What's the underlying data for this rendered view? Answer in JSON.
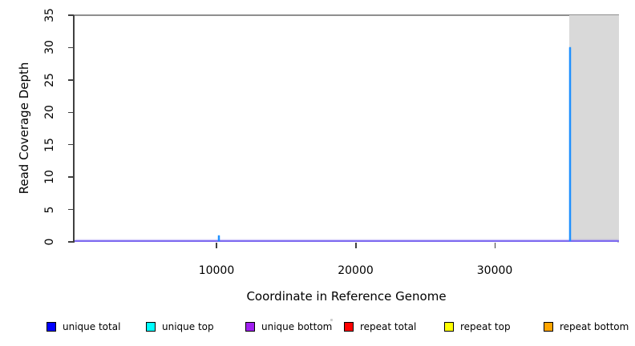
{
  "figure": {
    "background": "#ffffff",
    "border_top_color": "#8f8f8f",
    "border_right_color": "#c2c2c2",
    "axis_color": "#404040"
  },
  "chart_data": {
    "type": "line",
    "title": "",
    "xlabel": "Coordinate in Reference Genome",
    "ylabel": "Read Coverage Depth",
    "x_range": [
      -200,
      38930
    ],
    "y_range": [
      0,
      35
    ],
    "x_ticks": [
      10000,
      20000,
      30000
    ],
    "y_ticks": [
      0,
      5,
      10,
      15,
      20,
      25,
      30,
      35
    ],
    "grid": "off",
    "legend_position": "bottom",
    "highlight_region": {
      "x_start": 35350,
      "x_end": 38930,
      "color": "#d9d9d9"
    },
    "baseline": {
      "value": 0,
      "color": "#7d6af0"
    },
    "spikes": [
      {
        "x": 10170,
        "value": 1,
        "color": "#1e90ff",
        "series": "unique total"
      },
      {
        "x": 35420,
        "value": 30,
        "color": "#1e90ff",
        "series": "unique total"
      }
    ],
    "series": [
      {
        "name": "unique total",
        "summary": "0 across genome except spikes at ~10170 (depth 1) and ~35420 (depth 30)"
      },
      {
        "name": "unique top",
        "summary": "0 across genome"
      },
      {
        "name": "unique bottom",
        "summary": "0 across genome"
      },
      {
        "name": "repeat total",
        "summary": "0 across genome"
      },
      {
        "name": "repeat top",
        "summary": "0 across genome"
      },
      {
        "name": "repeat bottom",
        "summary": "0 across genome"
      }
    ]
  },
  "legend": {
    "swatch_border_color": "#000000",
    "items": [
      {
        "label": "unique total",
        "color": "#0000ff"
      },
      {
        "label": "unique top",
        "color": "#00ffff"
      },
      {
        "label": "unique bottom",
        "color": "#a020f0"
      },
      {
        "label": "repeat total",
        "color": "#ff0000"
      },
      {
        "label": "repeat top",
        "color": "#ffff00"
      },
      {
        "label": "repeat bottom",
        "color": "#ffa500"
      }
    ]
  }
}
